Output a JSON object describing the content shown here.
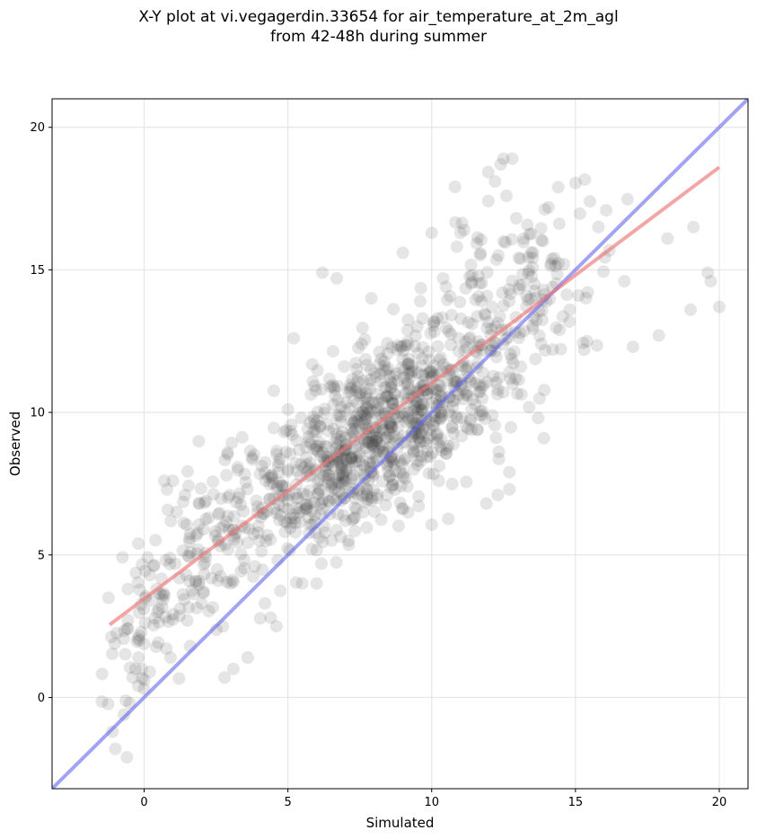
{
  "chart_data": {
    "type": "scatter",
    "title_line1": "X-Y plot at vi.vegagerdin.33654 for air_temperature_at_2m_agl",
    "title_line2": "from 42-48h during summer",
    "xlabel": "Simulated",
    "ylabel": "Observed",
    "xlim": [
      -3.2,
      21.0
    ],
    "ylim": [
      -3.2,
      21.0
    ],
    "xticks": [
      0,
      5,
      10,
      15,
      20
    ],
    "yticks": [
      0,
      5,
      10,
      15,
      20
    ],
    "grid": true,
    "point_color": "#333333",
    "point_opacity": 0.13,
    "identity_line": {
      "color": "#6666ee",
      "x": [
        -3.2,
        21.0
      ],
      "y": [
        -3.2,
        21.0
      ]
    },
    "fit_line": {
      "color": "#ee7777",
      "x": [
        -1.2,
        20.0
      ],
      "y": [
        2.55,
        18.6
      ]
    },
    "clusters": [
      {
        "cx": 8.0,
        "cy": 9.2,
        "n": 900,
        "sx": 2.4,
        "sy": 2.0,
        "rho": 0.7
      },
      {
        "cx": 12.5,
        "cy": 14.5,
        "n": 140,
        "sx": 1.6,
        "sy": 1.9,
        "rho": 0.3
      },
      {
        "cx": 2.0,
        "cy": 5.0,
        "n": 120,
        "sx": 1.3,
        "sy": 1.6,
        "rho": 0.5
      },
      {
        "cx": 0.0,
        "cy": 2.5,
        "n": 40,
        "sx": 0.8,
        "sy": 1.3,
        "rho": 0.4
      }
    ],
    "points": [
      [
        -1.1,
        -1.2
      ],
      [
        -1.0,
        -1.8
      ],
      [
        -0.7,
        -0.6
      ],
      [
        -0.6,
        -2.1
      ],
      [
        -0.5,
        -0.2
      ],
      [
        -0.4,
        0.7
      ],
      [
        -0.3,
        1.0
      ],
      [
        -0.2,
        1.4
      ],
      [
        -0.1,
        2.3
      ],
      [
        0.0,
        0.3
      ],
      [
        0.2,
        0.9
      ],
      [
        -0.2,
        5.4
      ],
      [
        0.7,
        7.6
      ],
      [
        1.0,
        7.6
      ],
      [
        0.8,
        7.3
      ],
      [
        12.4,
        18.7
      ],
      [
        12.8,
        18.9
      ],
      [
        12.2,
        18.1
      ],
      [
        12.6,
        17.6
      ],
      [
        14.4,
        17.9
      ],
      [
        15.5,
        17.4
      ],
      [
        15.8,
        16.5
      ],
      [
        18.2,
        16.1
      ],
      [
        19.1,
        16.5
      ],
      [
        19.6,
        14.9
      ],
      [
        19.7,
        14.6
      ],
      [
        20.0,
        13.7
      ],
      [
        19.0,
        13.6
      ],
      [
        17.9,
        12.7
      ],
      [
        17.0,
        12.3
      ],
      [
        16.7,
        14.6
      ],
      [
        15.3,
        12.2
      ],
      [
        15.4,
        12.5
      ],
      [
        13.7,
        9.8
      ],
      [
        13.9,
        9.1
      ],
      [
        12.7,
        7.3
      ],
      [
        12.7,
        7.9
      ],
      [
        12.3,
        7.1
      ],
      [
        11.9,
        6.8
      ],
      [
        3.1,
        1.0
      ],
      [
        3.6,
        1.4
      ],
      [
        2.8,
        0.7
      ],
      [
        4.4,
        2.8
      ],
      [
        4.6,
        2.5
      ],
      [
        5.5,
        4.0
      ],
      [
        6.0,
        4.0
      ],
      [
        4.2,
        3.3
      ],
      [
        1.6,
        1.8
      ],
      [
        5.2,
        12.6
      ],
      [
        6.2,
        14.9
      ],
      [
        6.7,
        14.7
      ],
      [
        7.9,
        14.0
      ],
      [
        9.0,
        15.6
      ],
      [
        10.0,
        16.3
      ],
      [
        11.0,
        16.3
      ],
      [
        10.2,
        13.3
      ],
      [
        9.5,
        11.4
      ],
      [
        8.5,
        10.0
      ],
      [
        7.3,
        9.0
      ],
      [
        6.5,
        7.4
      ],
      [
        5.0,
        6.6
      ],
      [
        4.0,
        5.5
      ],
      [
        3.0,
        4.0
      ],
      [
        2.0,
        3.3
      ],
      [
        1.5,
        2.7
      ],
      [
        8.8,
        12.2
      ],
      [
        9.6,
        13.9
      ],
      [
        11.4,
        13.1
      ],
      [
        11.2,
        11.5
      ],
      [
        10.3,
        10.0
      ],
      [
        9.1,
        8.4
      ],
      [
        8.1,
        7.0
      ],
      [
        7.0,
        6.2
      ],
      [
        6.1,
        5.6
      ],
      [
        11.6,
        9.4
      ],
      [
        12.3,
        10.8
      ],
      [
        13.1,
        11.6
      ],
      [
        14.8,
        13.6
      ],
      [
        15.1,
        14.1
      ],
      [
        14.6,
        15.2
      ]
    ]
  }
}
